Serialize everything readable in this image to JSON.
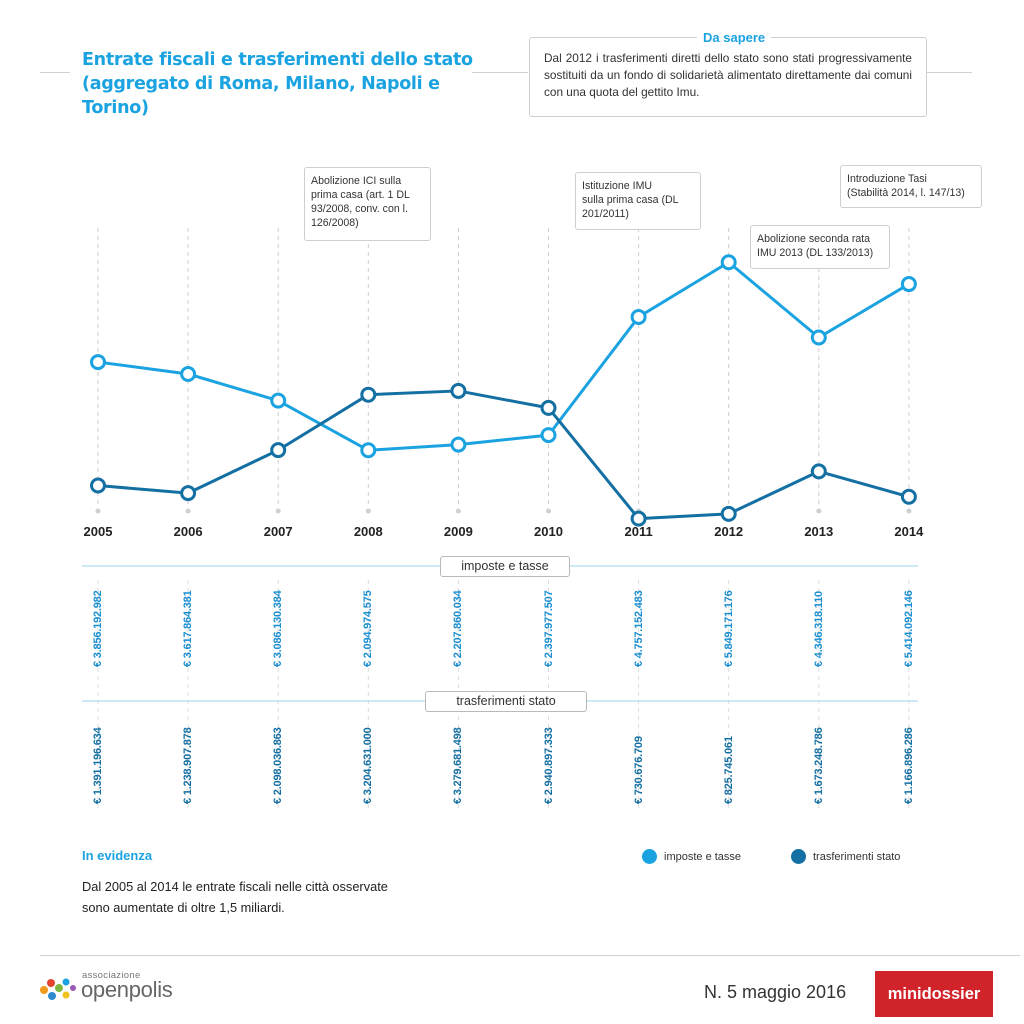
{
  "header": {
    "title_line1": "Entrate fiscali e trasferimenti dello stato",
    "title_line2": "(aggregato di Roma, Milano, Napoli e Torino)"
  },
  "da_sapere": {
    "label": "Da sapere",
    "text": "Dal 2012 i trasferimenti diretti dello stato sono stati progressivamente sostituiti da un fondo di solidarietà alimentato direttamente dai comuni con una quota del gettito Imu."
  },
  "annotations": [
    {
      "year": "2008",
      "lines": [
        "Abolizione ICI sulla",
        "prima casa (art. 1 DL",
        "93/2008, conv. con l.",
        "126/2008)"
      ]
    },
    {
      "year": "2011",
      "lines": [
        "Istituzione IMU",
        "sulla prima casa (DL",
        "201/2011)"
      ]
    },
    {
      "year": "2013",
      "lines": [
        "Abolizione seconda rata",
        "IMU 2013 (DL 133/2013)"
      ]
    },
    {
      "year": "2014",
      "lines": [
        "Introduzione Tasi",
        "(Stabilità 2014, l. 147/13)"
      ]
    }
  ],
  "chart_data": {
    "type": "line",
    "x": [
      "2005",
      "2006",
      "2007",
      "2008",
      "2009",
      "2010",
      "2011",
      "2012",
      "2013",
      "2014"
    ],
    "series": [
      {
        "name": "imposte e tasse",
        "color": "#1aa3e0",
        "values": [
          3856192982,
          3617864381,
          3086130384,
          2094974575,
          2207860034,
          2397977507,
          4757152483,
          5849171176,
          4346318110,
          5414092146
        ],
        "labels": [
          "€ 3.856.192.982",
          "€ 3.617.864.381",
          "€ 3.086.130.384",
          "€ 2.094.974.575",
          "€ 2.207.860.034",
          "€ 2.397.977.507",
          "€ 4.757.152.483",
          "€ 5.849.171.176",
          "€ 4.346.318.110",
          "€ 5.414.092.146"
        ]
      },
      {
        "name": "trasferimenti stato",
        "color": "#146fa3",
        "values": [
          1391196634,
          1238907878,
          2098036863,
          3204631000,
          3279681498,
          2940897333,
          730676709,
          825745061,
          1673248786,
          1166896286
        ],
        "labels": [
          "€ 1.391.196.634",
          "€ 1.238.907.878",
          "€ 2.098.036.863",
          "€ 3.204.631.000",
          "€ 3.279.681.498",
          "€ 2.940.897.333",
          "€ 730.676.709",
          "€ 825.745.061",
          "€ 1.673.248.786",
          "€ 1.166.896.286"
        ]
      }
    ],
    "legend": "bottom-right",
    "grid": "vertical dashed"
  },
  "table_labels": {
    "imposte": "imposte e tasse",
    "trasferimenti": "trasferimenti stato"
  },
  "evidenza": {
    "title": "In evidenza",
    "text": "Dal 2005 al 2014 le entrate fiscali nelle città osservate sono aumentate di oltre 1,5 miliardi."
  },
  "footer": {
    "logo_association": "associazione",
    "logo_name": "openpolis",
    "issue": "N. 5 maggio 2016",
    "badge": "minidossier"
  }
}
